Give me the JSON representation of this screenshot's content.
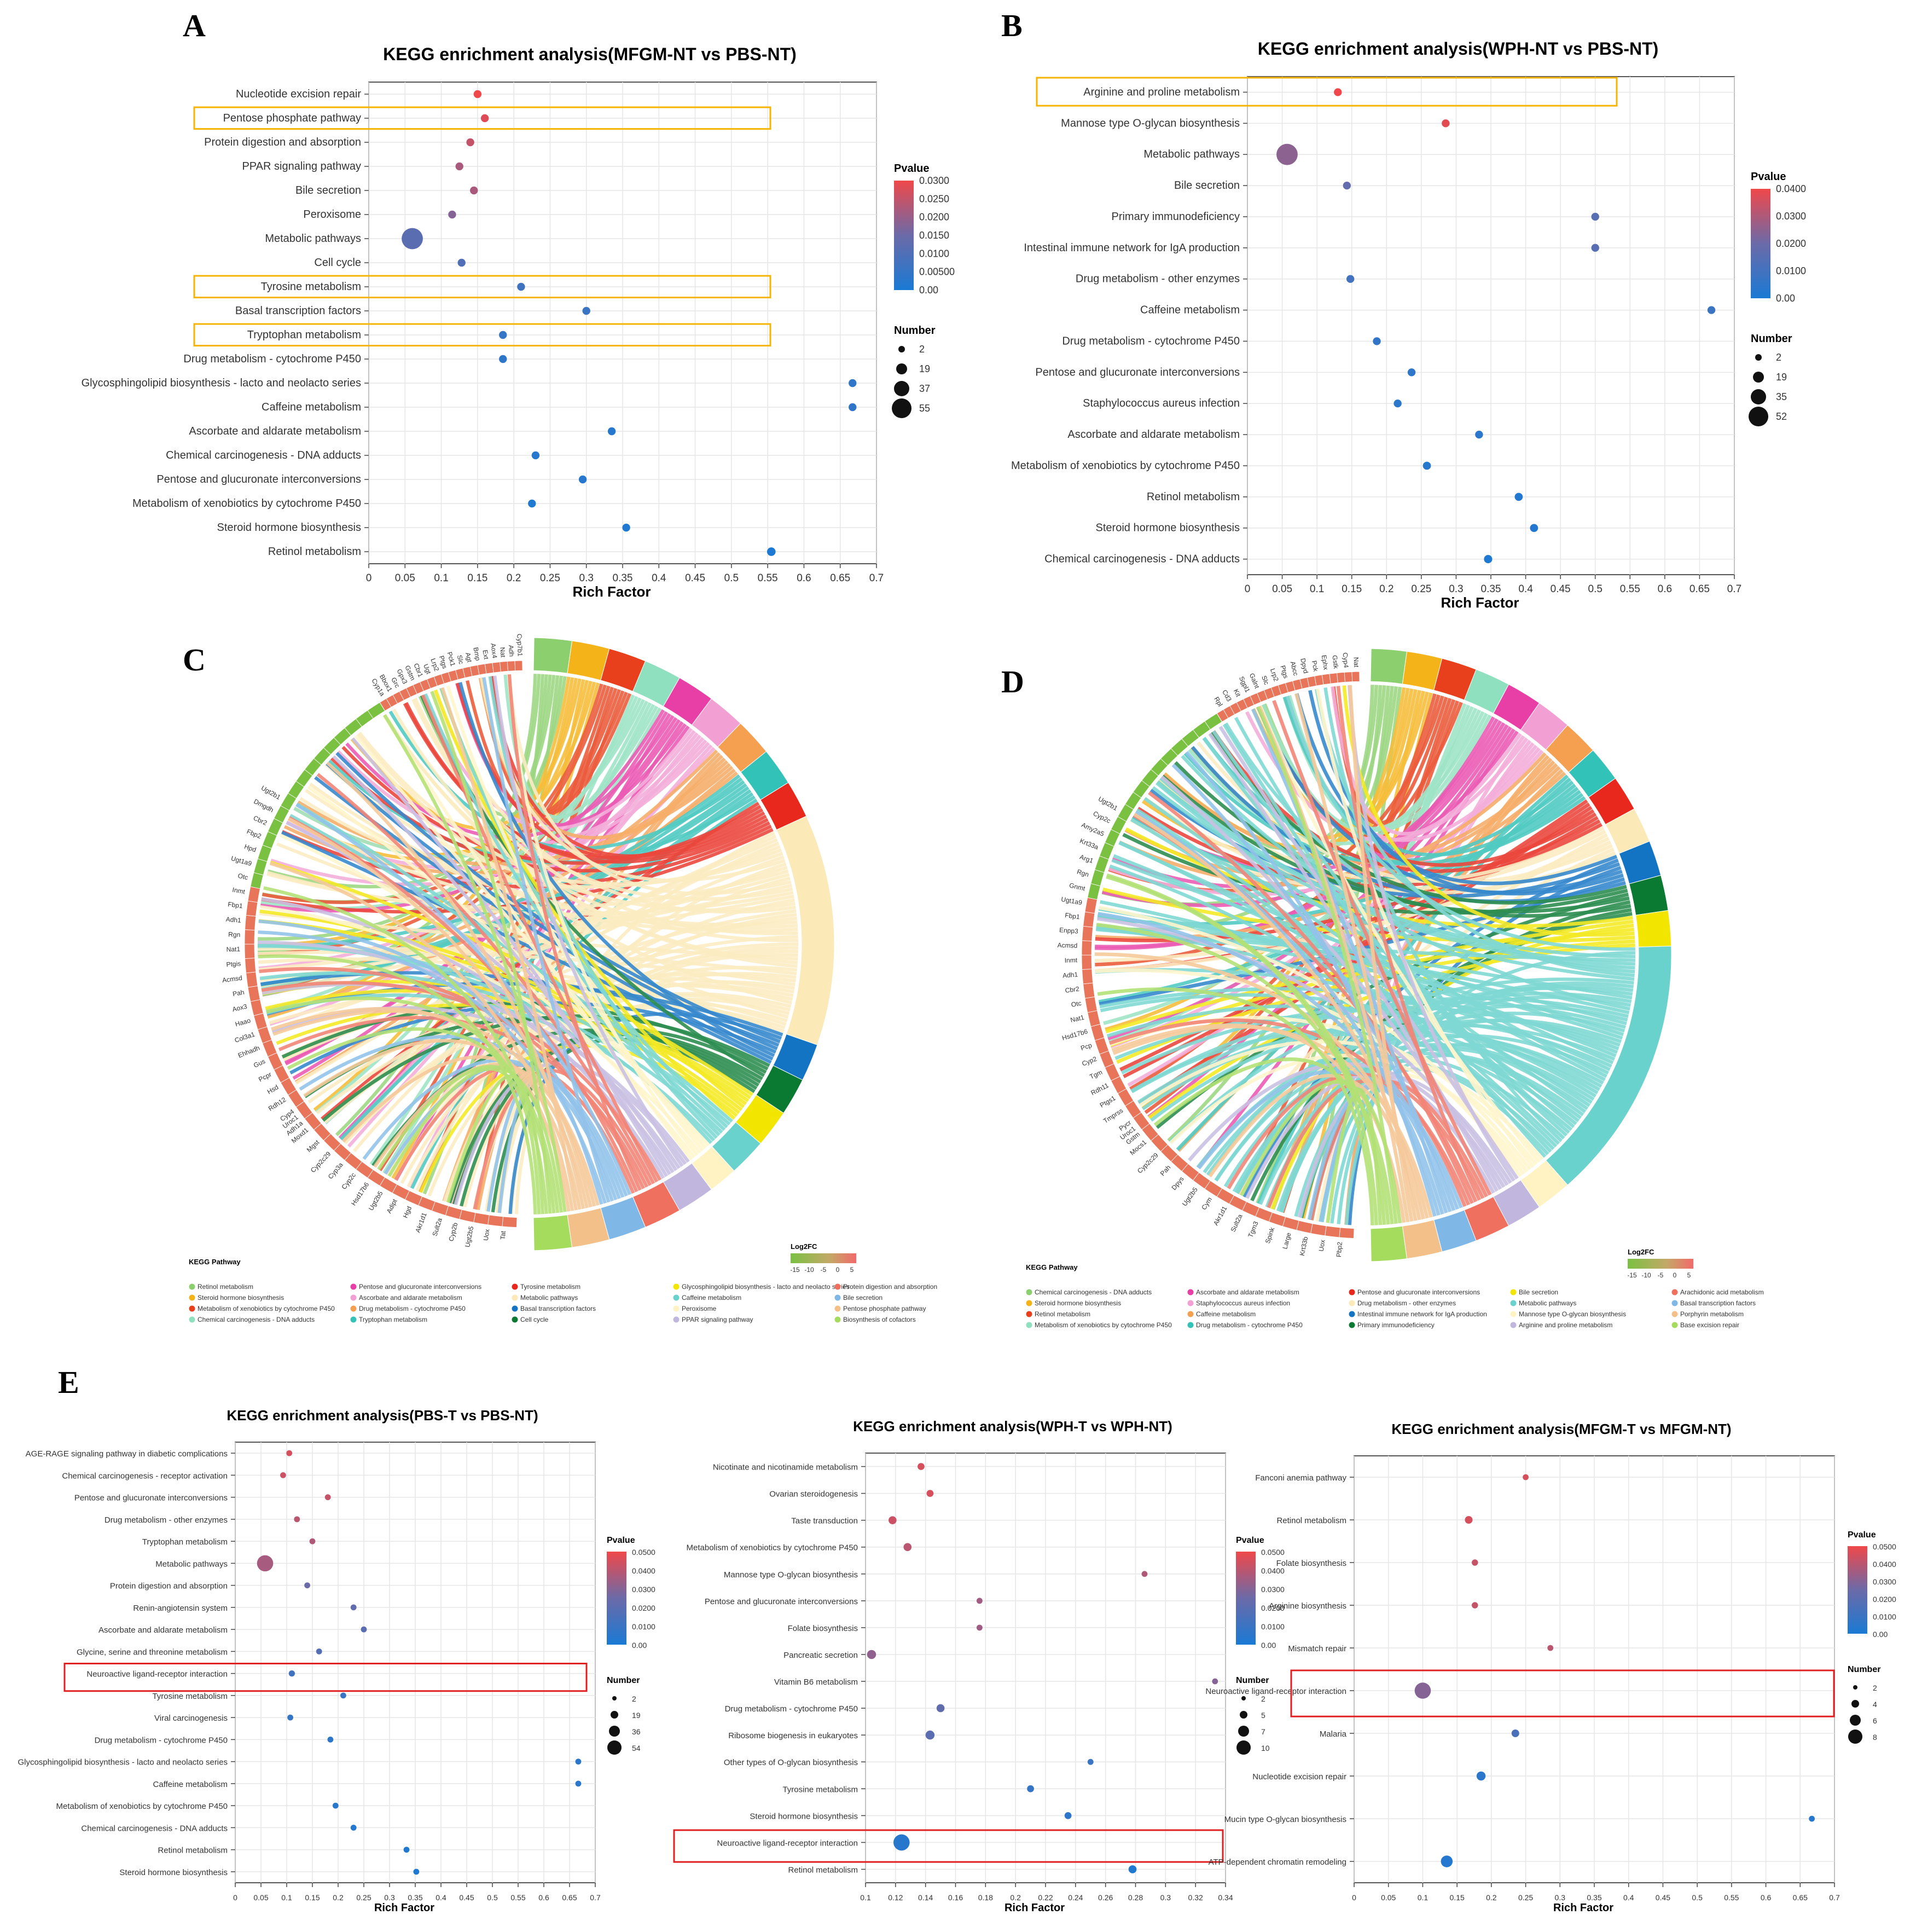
{
  "panels": {
    "A": "A",
    "B": "B",
    "C": "C",
    "D": "D",
    "E": "E"
  },
  "colors": {
    "low": "#1a7ad4",
    "mid": "#6b6aa8",
    "high": "#f0484a",
    "highlight_yellow": "#f5b400",
    "highlight_red": "#e02020"
  },
  "chart_data": [
    {
      "id": "A",
      "type": "scatter",
      "title": "KEGG enrichment analysis(MFGM-NT vs PBS-NT)",
      "xlabel": "Rich Factor",
      "ylabel": "",
      "xlim": [
        0,
        0.7
      ],
      "xticks": [
        "0",
        "0.05",
        "0.1",
        "0.15",
        "0.2",
        "0.25",
        "0.3",
        "0.35",
        "0.4",
        "0.45",
        "0.5",
        "0.55",
        "0.6",
        "0.65",
        "0.7"
      ],
      "categories": [
        "Nucleotide excision repair",
        "Pentose phosphate pathway",
        "Protein digestion and absorption",
        "PPAR signaling pathway",
        "Bile secretion",
        "Peroxisome",
        "Metabolic pathways",
        "Cell cycle",
        "Tyrosine metabolism",
        "Basal transcription factors",
        "Tryptophan metabolism",
        "Drug metabolism - cytochrome P450",
        "Glycosphingolipid biosynthesis - lacto and neolacto series",
        "Caffeine metabolism",
        "Ascorbate and aldarate metabolism",
        "Chemical carcinogenesis - DNA adducts",
        "Pentose and glucuronate interconversions",
        "Metabolism of xenobiotics by cytochrome P450",
        "Steroid hormone biosynthesis",
        "Retinol metabolism"
      ],
      "rich_factor": [
        0.15,
        0.16,
        0.14,
        0.125,
        0.145,
        0.115,
        0.06,
        0.128,
        0.21,
        0.3,
        0.185,
        0.185,
        0.667,
        0.667,
        0.335,
        0.23,
        0.295,
        0.225,
        0.355,
        0.555
      ],
      "pvalue": [
        0.03,
        0.028,
        0.025,
        0.022,
        0.022,
        0.018,
        0.012,
        0.01,
        0.007,
        0.006,
        0.005,
        0.004,
        0.004,
        0.004,
        0.002,
        0.002,
        0.002,
        0.001,
        0.001,
        0.0005
      ],
      "number": [
        4,
        4,
        5,
        5,
        5,
        6,
        55,
        5,
        4,
        3,
        7,
        7,
        2,
        2,
        4,
        7,
        5,
        7,
        7,
        12
      ],
      "highlight": [
        1,
        8,
        10
      ],
      "highlight_color": "yellow",
      "legend": {
        "pvalue_title": "Pvalue",
        "pvalue_ticks": [
          "0.0300",
          "0.0250",
          "0.0200",
          "0.0150",
          "0.0100",
          "0.00500",
          "0.00"
        ],
        "number_title": "Number",
        "number_ticks": [
          "2",
          "19",
          "37",
          "55"
        ]
      }
    },
    {
      "id": "B",
      "type": "scatter",
      "title": "KEGG enrichment analysis(WPH-NT vs PBS-NT)",
      "xlabel": "Rich Factor",
      "xlim": [
        0,
        0.7
      ],
      "xticks": [
        "0",
        "0.05",
        "0.1",
        "0.15",
        "0.2",
        "0.25",
        "0.3",
        "0.35",
        "0.4",
        "0.45",
        "0.5",
        "0.55",
        "0.6",
        "0.65",
        "0.7"
      ],
      "categories": [
        "Arginine and proline metabolism",
        "Mannose type O-glycan biosynthesis",
        "Metabolic pathways",
        "Bile secretion",
        "Primary immunodeficiency",
        "Intestinal immune network for IgA production",
        "Drug metabolism - other enzymes",
        "Caffeine metabolism",
        "Drug metabolism - cytochrome P450",
        "Pentose and glucuronate interconversions",
        "Staphylococcus aureus infection",
        "Ascorbate and aldarate metabolism",
        "Metabolism of xenobiotics by cytochrome P450",
        "Retinol metabolism",
        "Steroid hormone biosynthesis",
        "Chemical carcinogenesis - DNA adducts"
      ],
      "rich_factor": [
        0.13,
        0.285,
        0.057,
        0.143,
        0.5,
        0.5,
        0.148,
        0.667,
        0.186,
        0.236,
        0.216,
        0.333,
        0.258,
        0.39,
        0.412,
        0.346
      ],
      "pvalue": [
        0.042,
        0.038,
        0.025,
        0.018,
        0.015,
        0.015,
        0.01,
        0.008,
        0.006,
        0.005,
        0.004,
        0.004,
        0.003,
        0.002,
        0.002,
        0.001
      ],
      "number": [
        6,
        2,
        52,
        5,
        2,
        2,
        6,
        2,
        8,
        7,
        6,
        6,
        9,
        9,
        9,
        10
      ],
      "highlight": [
        0
      ],
      "highlight_color": "yellow",
      "legend": {
        "pvalue_title": "Pvalue",
        "pvalue_ticks": [
          "0.0400",
          "0.0300",
          "0.0200",
          "0.0100",
          "0.00"
        ],
        "number_title": "Number",
        "number_ticks": [
          "2",
          "19",
          "35",
          "52"
        ]
      }
    },
    {
      "id": "E1",
      "type": "scatter",
      "title": "KEGG enrichment analysis(PBS-T vs PBS-NT)",
      "xlabel": "Rich Factor",
      "xlim": [
        0,
        0.7
      ],
      "xticks": [
        "0",
        "0.05",
        "0.1",
        "0.15",
        "0.2",
        "0.25",
        "0.3",
        "0.35",
        "0.4",
        "0.45",
        "0.5",
        "0.55",
        "0.6",
        "0.65",
        "0.7"
      ],
      "categories": [
        "AGE-RAGE signaling pathway in diabetic complications",
        "Chemical carcinogenesis - receptor activation",
        "Pentose and glucuronate interconversions",
        "Drug metabolism - other enzymes",
        "Tryptophan metabolism",
        "Metabolic pathways",
        "Protein digestion and absorption",
        "Renin-angiotensin system",
        "Ascorbate and aldarate metabolism",
        "Glycine, serine and threonine metabolism",
        "Neuroactive ligand-receptor interaction",
        "Tyrosine metabolism",
        "Viral carcinogenesis",
        "Drug metabolism - cytochrome P450",
        "Glycosphingolipid biosynthesis - lacto and neolacto series",
        "Caffeine metabolism",
        "Metabolism of xenobiotics by cytochrome P450",
        "Chemical carcinogenesis - DNA adducts",
        "Retinol metabolism",
        "Steroid hormone biosynthesis"
      ],
      "rich_factor": [
        0.105,
        0.093,
        0.18,
        0.12,
        0.15,
        0.058,
        0.14,
        0.23,
        0.25,
        0.163,
        0.11,
        0.21,
        0.107,
        0.185,
        0.667,
        0.667,
        0.195,
        0.23,
        0.333,
        0.352
      ],
      "pvalue": [
        0.045,
        0.043,
        0.042,
        0.04,
        0.038,
        0.036,
        0.025,
        0.022,
        0.02,
        0.018,
        0.012,
        0.01,
        0.008,
        0.006,
        0.005,
        0.005,
        0.004,
        0.003,
        0.002,
        0.001
      ],
      "number": [
        6,
        6,
        3,
        5,
        4,
        54,
        5,
        3,
        4,
        4,
        10,
        5,
        8,
        6,
        2,
        2,
        6,
        6,
        6,
        6
      ],
      "highlight": [
        10
      ],
      "highlight_color": "red",
      "legend": {
        "pvalue_title": "Pvalue",
        "pvalue_ticks": [
          "0.0500",
          "0.0400",
          "0.0300",
          "0.0200",
          "0.0100",
          "0.00"
        ],
        "number_title": "Number",
        "number_ticks": [
          "2",
          "19",
          "36",
          "54"
        ]
      }
    },
    {
      "id": "E2",
      "type": "scatter",
      "title": "KEGG enrichment analysis(WPH-T vs WPH-NT)",
      "xlabel": "Rich Factor",
      "xlim": [
        0.1,
        0.34
      ],
      "xticks": [
        "0.1",
        "0.12",
        "0.14",
        "0.16",
        "0.18",
        "0.2",
        "0.22",
        "0.24",
        "0.26",
        "0.28",
        "0.3",
        "0.32",
        "0.34"
      ],
      "categories": [
        "Nicotinate and nicotinamide metabolism",
        "Ovarian steroidogenesis",
        "Taste transduction",
        "Metabolism of xenobiotics by cytochrome P450",
        "Mannose type O-glycan biosynthesis",
        "Pentose and glucuronate interconversions",
        "Folate biosynthesis",
        "Pancreatic secretion",
        "Vitamin B6 metabolism",
        "Drug metabolism - cytochrome P450",
        "Ribosome biogenesis in eukaryotes",
        "Other types of O-glycan biosynthesis",
        "Tyrosine metabolism",
        "Steroid hormone biosynthesis",
        "Neuroactive ligand-receptor interaction",
        "Retinol metabolism"
      ],
      "rich_factor": [
        0.137,
        0.143,
        0.118,
        0.128,
        0.286,
        0.176,
        0.176,
        0.104,
        0.333,
        0.15,
        0.143,
        0.25,
        0.21,
        0.235,
        0.124,
        0.278
      ],
      "pvalue": [
        0.045,
        0.045,
        0.043,
        0.04,
        0.038,
        0.035,
        0.035,
        0.032,
        0.03,
        0.022,
        0.02,
        0.01,
        0.008,
        0.006,
        0.004,
        0.002
      ],
      "number": [
        4,
        4,
        5,
        5,
        2,
        3,
        3,
        6,
        2,
        5,
        6,
        3,
        4,
        4,
        10,
        5
      ],
      "highlight": [
        14
      ],
      "highlight_color": "red",
      "legend": {
        "pvalue_title": "Pvalue",
        "pvalue_ticks": [
          "0.0500",
          "0.0400",
          "0.0300",
          "0.0200",
          "0.0100",
          "0.00"
        ],
        "number_title": "Number",
        "number_ticks": [
          "2",
          "5",
          "7",
          "10"
        ]
      }
    },
    {
      "id": "E3",
      "type": "scatter",
      "title": "KEGG enrichment analysis(MFGM-T vs MFGM-NT)",
      "xlabel": "Rich Factor",
      "xlim": [
        0,
        0.7
      ],
      "xticks": [
        "0",
        "0.05",
        "0.1",
        "0.15",
        "0.2",
        "0.25",
        "0.3",
        "0.35",
        "0.4",
        "0.45",
        "0.5",
        "0.55",
        "0.6",
        "0.65",
        "0.7"
      ],
      "categories": [
        "Fanconi anemia pathway",
        "Retinol metabolism",
        "Folate biosynthesis",
        "Arginine biosynthesis",
        "Mismatch repair",
        "Neuroactive ligand-receptor interaction",
        "Malaria",
        "Nucleotide excision repair",
        "Mucin type O-glycan biosynthesis",
        "ATP-dependent chromatin remodeling"
      ],
      "rich_factor": [
        0.25,
        0.167,
        0.176,
        0.176,
        0.286,
        0.1,
        0.235,
        0.185,
        0.667,
        0.135
      ],
      "pvalue": [
        0.045,
        0.045,
        0.042,
        0.042,
        0.04,
        0.03,
        0.015,
        0.005,
        0.004,
        0.003
      ],
      "number": [
        2,
        4,
        3,
        3,
        2,
        8,
        4,
        5,
        2,
        7
      ],
      "highlight": [
        5
      ],
      "highlight_color": "red",
      "legend": {
        "pvalue_title": "Pvalue",
        "pvalue_ticks": [
          "0.0500",
          "0.0400",
          "0.0300",
          "0.0200",
          "0.0100",
          "0.00"
        ],
        "number_title": "Number",
        "number_ticks": [
          "2",
          "4",
          "6",
          "8"
        ]
      }
    }
  ],
  "chords": {
    "C": {
      "legend_title": "KEGG Pathway",
      "fc_title": "Log2FC",
      "fc_ticks": [
        "-15",
        "-10",
        "-5",
        "0",
        "5"
      ],
      "pathways": [
        {
          "name": "Retinol metabolism",
          "color": "#8ccf6e"
        },
        {
          "name": "Steroid hormone biosynthesis",
          "color": "#f5b31a"
        },
        {
          "name": "Metabolism of xenobiotics by cytochrome P450",
          "color": "#e8401c"
        },
        {
          "name": "Chemical carcinogenesis - DNA adducts",
          "color": "#8fe0be"
        },
        {
          "name": "Pentose and glucuronate interconversions",
          "color": "#e83fa7"
        },
        {
          "name": "Ascorbate and aldarate metabolism",
          "color": "#f2a0d4"
        },
        {
          "name": "Drug metabolism - cytochrome P450",
          "color": "#f5a050"
        },
        {
          "name": "Tryptophan metabolism",
          "color": "#33c2b8"
        },
        {
          "name": "Tyrosine metabolism",
          "color": "#e8281c"
        },
        {
          "name": "Metabolic pathways",
          "color": "#fbe9b8"
        },
        {
          "name": "Basal transcription factors",
          "color": "#1474c4"
        },
        {
          "name": "Cell cycle",
          "color": "#0a7a32"
        },
        {
          "name": "Glycosphingolipid biosynthesis - lacto and neolacto series",
          "color": "#f2e600"
        },
        {
          "name": "Caffeine metabolism",
          "color": "#69d2cc"
        },
        {
          "name": "Peroxisome",
          "color": "#fff3c4"
        },
        {
          "name": "PPAR signaling pathway",
          "color": "#c1b6de"
        },
        {
          "name": "Protein digestion and absorption",
          "color": "#f07060"
        },
        {
          "name": "Bile secretion",
          "color": "#7fb8e6"
        },
        {
          "name": "Pentose phosphate pathway",
          "color": "#f4c08a"
        },
        {
          "name": "Biosynthesis of cofactors",
          "color": "#a6dc5e"
        }
      ],
      "genes_top": [
        "Cyp1a",
        "Bbox1",
        "Grc",
        "Gpx3",
        "Gstm",
        "Cbr1",
        "Ugt",
        "Lrp2",
        "Ptgs",
        "Pck1",
        "Slc",
        "Agt",
        "Bmp",
        "Ext",
        "Aox4",
        "Nat",
        "Adh",
        "Cyp7b1"
      ],
      "genes_left": [
        "Adh1a",
        "Cyp4",
        "Rdh12",
        "Hsd",
        "Pcpr",
        "Gus",
        "Ehhadh",
        "Col3a1",
        "Haao",
        "Aox3",
        "Pah",
        "Acmsd",
        "Ptgis",
        "Nat1",
        "Rgn",
        "Adh1",
        "Fbp1",
        "Inmt",
        "Otc",
        "Ugt1a9",
        "Hpd",
        "Fbp2",
        "Cbr2",
        "Dmgdh",
        "Ugt2b1"
      ],
      "genes_bottom": [
        "Tat",
        "Uox",
        "Ugt2b5",
        "Cyp2b",
        "Sult2a",
        "Akr1d1",
        "Hgd",
        "Adipt",
        "Ugt2b5",
        "Hsd17b6",
        "Cyp2c",
        "Cyp3a",
        "Cyp2c29",
        "Mgst",
        "Moxd1",
        "Uroc1"
      ]
    },
    "D": {
      "legend_title": "KEGG Pathway",
      "fc_title": "Log2FC",
      "fc_ticks": [
        "-15",
        "-10",
        "-5",
        "0",
        "5"
      ],
      "pathways": [
        {
          "name": "Chemical carcinogenesis - DNA adducts",
          "color": "#8ccf6e"
        },
        {
          "name": "Steroid hormone biosynthesis",
          "color": "#f5b31a"
        },
        {
          "name": "Retinol metabolism",
          "color": "#e8401c"
        },
        {
          "name": "Metabolism of xenobiotics by cytochrome P450",
          "color": "#8fe0be"
        },
        {
          "name": "Ascorbate and aldarate metabolism",
          "color": "#e83fa7"
        },
        {
          "name": "Staphylococcus aureus infection",
          "color": "#f2a0d4"
        },
        {
          "name": "Caffeine metabolism",
          "color": "#f5a050"
        },
        {
          "name": "Drug metabolism - cytochrome P450",
          "color": "#33c2b8"
        },
        {
          "name": "Pentose and glucuronate interconversions",
          "color": "#e8281c"
        },
        {
          "name": "Drug metabolism - other enzymes",
          "color": "#fbe9b8"
        },
        {
          "name": "Intestinal immune network for IgA production",
          "color": "#1474c4"
        },
        {
          "name": "Primary immunodeficiency",
          "color": "#0a7a32"
        },
        {
          "name": "Bile secretion",
          "color": "#f2e600"
        },
        {
          "name": "Metabolic pathways",
          "color": "#69d2cc"
        },
        {
          "name": "Mannose type O-glycan biosynthesis",
          "color": "#fff3c4"
        },
        {
          "name": "Arginine and proline metabolism",
          "color": "#c1b6de"
        },
        {
          "name": "Arachidonic acid metabolism",
          "color": "#f07060"
        },
        {
          "name": "Basal transcription factors",
          "color": "#7fb8e6"
        },
        {
          "name": "Porphyrin metabolism",
          "color": "#f4c08a"
        },
        {
          "name": "Base excision repair",
          "color": "#a6dc5e"
        }
      ],
      "genes_top": [
        "Rpl",
        "Cd3",
        "Kit",
        "Sgpl1",
        "Galnt",
        "Slc",
        "Lrp2",
        "Ptgs",
        "Abcc",
        "Dpyd",
        "Pck",
        "Ephx",
        "Gstk",
        "Cyp4",
        "Nat"
      ],
      "genes_left": [
        "Gstm",
        "Pycr",
        "Tmprss",
        "Ptgs1",
        "Rdh11",
        "Tgm",
        "Cyp2",
        "Pcp",
        "Hsd17b6",
        "Nat1",
        "Otc",
        "Cbr2",
        "Adh1",
        "Inmt",
        "Acmsd",
        "Enpp3",
        "Fbp1",
        "Ugt1a9",
        "Gnmt",
        "Rgn",
        "Arg1",
        "Krt33a",
        "Amy2a5",
        "Cyp2c",
        "Ugt2b1"
      ],
      "genes_bottom": [
        "Pbp2",
        "Uox",
        "Krt33b",
        "Large",
        "Spink",
        "Tgm3",
        "Sult2a",
        "Akr1d1",
        "Cym",
        "Ugt2b5",
        "Dpys",
        "Pah",
        "Cyp2c29",
        "Mocs1",
        "Uroc1"
      ]
    }
  }
}
